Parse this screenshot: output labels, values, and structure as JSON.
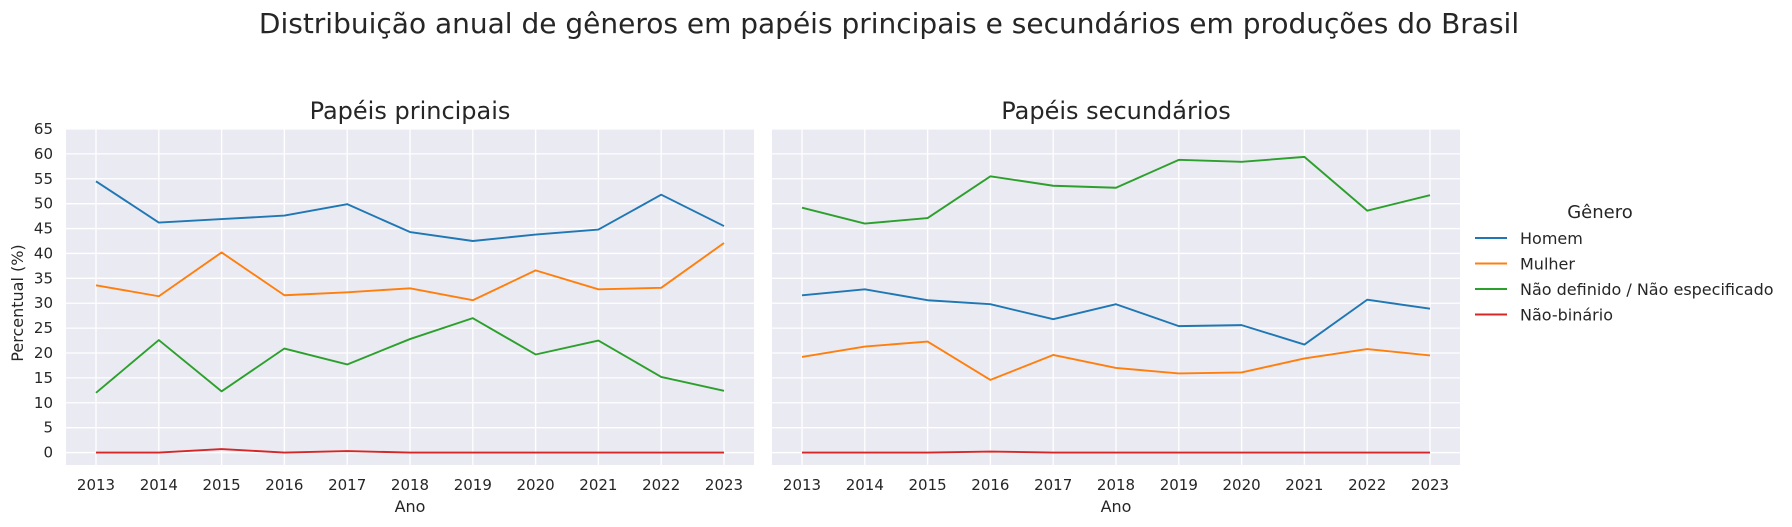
{
  "title": "Distribuição anual de gêneros em papéis principais e secundários em produções do Brasil",
  "ylabel": "Percentual (%)",
  "legend": {
    "title": "Gênero",
    "placement": "right"
  },
  "colors": {
    "Homem": "#1f77b4",
    "Mulher": "#ff7f0e",
    "Não definido / Não especificado": "#2ca02c",
    "Não-binário": "#d62728",
    "background": "#eaeaf2",
    "grid": "#ffffff"
  },
  "chart_data": [
    {
      "type": "line",
      "title": "Papéis principais",
      "xlabel": "Ano",
      "ylabel": "Percentual (%)",
      "ylim": [
        -2.5,
        65
      ],
      "yticks": [
        0,
        5,
        10,
        15,
        20,
        25,
        30,
        35,
        40,
        45,
        50,
        55,
        60,
        65
      ],
      "grid": true,
      "x": [
        2013,
        2014,
        2015,
        2016,
        2017,
        2018,
        2019,
        2020,
        2021,
        2022,
        2023
      ],
      "series": [
        {
          "name": "Homem",
          "values": [
            54.5,
            46.2,
            46.9,
            47.6,
            49.9,
            44.3,
            42.5,
            43.8,
            44.8,
            51.8,
            45.5
          ]
        },
        {
          "name": "Mulher",
          "values": [
            33.6,
            31.4,
            40.2,
            31.6,
            32.2,
            33.0,
            30.6,
            36.6,
            32.8,
            33.1,
            42.1
          ]
        },
        {
          "name": "Não definido / Não especificado",
          "values": [
            12.0,
            22.6,
            12.3,
            20.9,
            17.7,
            22.8,
            27.0,
            19.7,
            22.5,
            15.2,
            12.4
          ]
        },
        {
          "name": "Não-binário",
          "values": [
            0.0,
            0.0,
            0.7,
            0.0,
            0.3,
            0.0,
            0.0,
            0.0,
            0.0,
            0.0,
            0.0
          ]
        }
      ]
    },
    {
      "type": "line",
      "title": "Papéis secundários",
      "xlabel": "Ano",
      "ylabel": "",
      "ylim": [
        -2.5,
        65
      ],
      "yticks": [
        0,
        5,
        10,
        15,
        20,
        25,
        30,
        35,
        40,
        45,
        50,
        55,
        60,
        65
      ],
      "grid": true,
      "x": [
        2013,
        2014,
        2015,
        2016,
        2017,
        2018,
        2019,
        2020,
        2021,
        2022,
        2023
      ],
      "series": [
        {
          "name": "Homem",
          "values": [
            31.6,
            32.8,
            30.6,
            29.8,
            26.8,
            29.8,
            25.4,
            25.6,
            21.7,
            30.7,
            28.9
          ]
        },
        {
          "name": "Mulher",
          "values": [
            19.2,
            21.3,
            22.3,
            14.6,
            19.6,
            17.0,
            15.9,
            16.1,
            18.9,
            20.8,
            19.5
          ]
        },
        {
          "name": "Não definido / Não especificado",
          "values": [
            49.2,
            46.0,
            47.1,
            55.5,
            53.6,
            53.2,
            58.8,
            58.4,
            59.4,
            48.6,
            51.7
          ]
        },
        {
          "name": "Não-binário",
          "values": [
            0.0,
            0.0,
            0.0,
            0.2,
            0.0,
            0.0,
            0.0,
            0.0,
            0.0,
            0.0,
            0.0
          ]
        }
      ]
    }
  ]
}
